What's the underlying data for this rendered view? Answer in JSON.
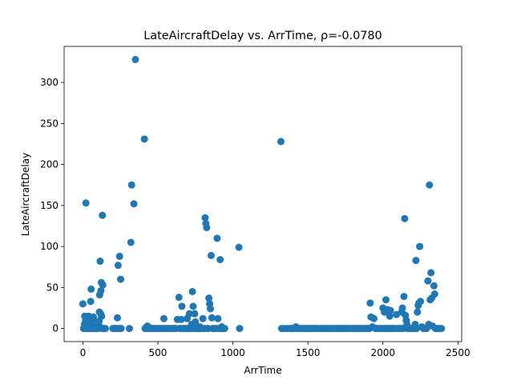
{
  "chart_data": {
    "type": "scatter",
    "title": "LateAircraftDelay vs. ArrTime, ρ=-0.0780",
    "xlabel": "ArrTime",
    "ylabel": "LateAircraftDelay",
    "xlim": [
      -125,
      2525
    ],
    "ylim": [
      -16,
      344
    ],
    "xticks": [
      0,
      500,
      1000,
      1500,
      2000,
      2500
    ],
    "yticks": [
      0,
      50,
      100,
      150,
      200,
      250,
      300
    ],
    "grid": false,
    "legend": "none",
    "marker_color": "#1f77b4",
    "points": [
      [
        0,
        30
      ],
      [
        5,
        0
      ],
      [
        10,
        5
      ],
      [
        12,
        15
      ],
      [
        15,
        0
      ],
      [
        18,
        10
      ],
      [
        20,
        153
      ],
      [
        22,
        0
      ],
      [
        25,
        12
      ],
      [
        28,
        3
      ],
      [
        30,
        0
      ],
      [
        32,
        8
      ],
      [
        35,
        0
      ],
      [
        38,
        15
      ],
      [
        40,
        0
      ],
      [
        42,
        5
      ],
      [
        45,
        2
      ],
      [
        48,
        0
      ],
      [
        50,
        12
      ],
      [
        52,
        33
      ],
      [
        55,
        48
      ],
      [
        58,
        0
      ],
      [
        60,
        5
      ],
      [
        62,
        0
      ],
      [
        65,
        10
      ],
      [
        68,
        0
      ],
      [
        70,
        14
      ],
      [
        72,
        0
      ],
      [
        75,
        0
      ],
      [
        80,
        0
      ],
      [
        85,
        2
      ],
      [
        90,
        0
      ],
      [
        95,
        0
      ],
      [
        100,
        0
      ],
      [
        105,
        5
      ],
      [
        108,
        9
      ],
      [
        110,
        20
      ],
      [
        112,
        41
      ],
      [
        115,
        82
      ],
      [
        118,
        18
      ],
      [
        120,
        46
      ],
      [
        123,
        56
      ],
      [
        125,
        15
      ],
      [
        128,
        0
      ],
      [
        130,
        138
      ],
      [
        133,
        53
      ],
      [
        135,
        0
      ],
      [
        140,
        0
      ],
      [
        150,
        0
      ],
      [
        200,
        0
      ],
      [
        210,
        0
      ],
      [
        220,
        0
      ],
      [
        225,
        0
      ],
      [
        230,
        13
      ],
      [
        235,
        77
      ],
      [
        240,
        0
      ],
      [
        245,
        88
      ],
      [
        250,
        0
      ],
      [
        252,
        60
      ],
      [
        255,
        0
      ],
      [
        310,
        0
      ],
      [
        320,
        105
      ],
      [
        325,
        175
      ],
      [
        340,
        152
      ],
      [
        350,
        328
      ],
      [
        410,
        231
      ],
      [
        415,
        0
      ],
      [
        420,
        0
      ],
      [
        425,
        2
      ],
      [
        430,
        3
      ],
      [
        435,
        0
      ],
      [
        440,
        0
      ],
      [
        445,
        1
      ],
      [
        450,
        0
      ],
      [
        460,
        0
      ],
      [
        470,
        0
      ],
      [
        480,
        0
      ],
      [
        490,
        0
      ],
      [
        500,
        0
      ],
      [
        510,
        0
      ],
      [
        520,
        0
      ],
      [
        530,
        0
      ],
      [
        540,
        12
      ],
      [
        545,
        0
      ],
      [
        550,
        0
      ],
      [
        560,
        0
      ],
      [
        570,
        0
      ],
      [
        580,
        0
      ],
      [
        590,
        0
      ],
      [
        600,
        0
      ],
      [
        610,
        0
      ],
      [
        620,
        0
      ],
      [
        630,
        11
      ],
      [
        640,
        38
      ],
      [
        645,
        0
      ],
      [
        650,
        0
      ],
      [
        655,
        11
      ],
      [
        660,
        27
      ],
      [
        665,
        0
      ],
      [
        670,
        0
      ],
      [
        680,
        0
      ],
      [
        690,
        0
      ],
      [
        695,
        12
      ],
      [
        700,
        0
      ],
      [
        705,
        0
      ],
      [
        710,
        18
      ],
      [
        715,
        0
      ],
      [
        720,
        0
      ],
      [
        725,
        5
      ],
      [
        730,
        45
      ],
      [
        735,
        27
      ],
      [
        740,
        0
      ],
      [
        745,
        18
      ],
      [
        750,
        8
      ],
      [
        755,
        0
      ],
      [
        760,
        0
      ],
      [
        770,
        0
      ],
      [
        775,
        0
      ],
      [
        780,
        2
      ],
      [
        790,
        0
      ],
      [
        800,
        12
      ],
      [
        805,
        0
      ],
      [
        810,
        0
      ],
      [
        815,
        135
      ],
      [
        820,
        128
      ],
      [
        825,
        123
      ],
      [
        830,
        0
      ],
      [
        835,
        0
      ],
      [
        840,
        37
      ],
      [
        845,
        30
      ],
      [
        850,
        24
      ],
      [
        855,
        89
      ],
      [
        860,
        13
      ],
      [
        865,
        0
      ],
      [
        870,
        0
      ],
      [
        880,
        0
      ],
      [
        890,
        0
      ],
      [
        895,
        110
      ],
      [
        900,
        12
      ],
      [
        910,
        0
      ],
      [
        915,
        84
      ],
      [
        920,
        0
      ],
      [
        925,
        2
      ],
      [
        930,
        0
      ],
      [
        940,
        0
      ],
      [
        945,
        0
      ],
      [
        1040,
        99
      ],
      [
        1045,
        0
      ],
      [
        1320,
        228
      ],
      [
        1325,
        0
      ],
      [
        1340,
        0
      ],
      [
        1360,
        0
      ],
      [
        1380,
        0
      ],
      [
        1390,
        0
      ],
      [
        1400,
        0
      ],
      [
        1410,
        0
      ],
      [
        1420,
        2
      ],
      [
        1430,
        0
      ],
      [
        1440,
        0
      ],
      [
        1450,
        0
      ],
      [
        1460,
        0
      ],
      [
        1470,
        0
      ],
      [
        1480,
        0
      ],
      [
        1490,
        0
      ],
      [
        1500,
        0
      ],
      [
        1510,
        0
      ],
      [
        1520,
        0
      ],
      [
        1530,
        0
      ],
      [
        1540,
        0
      ],
      [
        1550,
        0
      ],
      [
        1560,
        0
      ],
      [
        1570,
        0
      ],
      [
        1590,
        0
      ],
      [
        1600,
        0
      ],
      [
        1610,
        0
      ],
      [
        1620,
        0
      ],
      [
        1630,
        0
      ],
      [
        1640,
        0
      ],
      [
        1650,
        0
      ],
      [
        1660,
        0
      ],
      [
        1680,
        0
      ],
      [
        1690,
        0
      ],
      [
        1700,
        0
      ],
      [
        1710,
        0
      ],
      [
        1720,
        0
      ],
      [
        1730,
        0
      ],
      [
        1740,
        0
      ],
      [
        1750,
        0
      ],
      [
        1760,
        0
      ],
      [
        1770,
        0
      ],
      [
        1790,
        0
      ],
      [
        1800,
        0
      ],
      [
        1810,
        0
      ],
      [
        1820,
        0
      ],
      [
        1830,
        0
      ],
      [
        1840,
        0
      ],
      [
        1850,
        0
      ],
      [
        1860,
        0
      ],
      [
        1870,
        0
      ],
      [
        1880,
        0
      ],
      [
        1890,
        0
      ],
      [
        1900,
        0
      ],
      [
        1910,
        0
      ],
      [
        1915,
        31
      ],
      [
        1920,
        14
      ],
      [
        1930,
        2
      ],
      [
        1940,
        12
      ],
      [
        1950,
        0
      ],
      [
        1960,
        0
      ],
      [
        1970,
        0
      ],
      [
        1980,
        0
      ],
      [
        1990,
        0
      ],
      [
        2000,
        25
      ],
      [
        2005,
        0
      ],
      [
        2010,
        20
      ],
      [
        2015,
        0
      ],
      [
        2020,
        35
      ],
      [
        2025,
        0
      ],
      [
        2030,
        23
      ],
      [
        2035,
        0
      ],
      [
        2040,
        0
      ],
      [
        2045,
        15
      ],
      [
        2050,
        22
      ],
      [
        2055,
        0
      ],
      [
        2060,
        0
      ],
      [
        2070,
        0
      ],
      [
        2080,
        0
      ],
      [
        2090,
        17
      ],
      [
        2100,
        0
      ],
      [
        2110,
        0
      ],
      [
        2120,
        0
      ],
      [
        2125,
        20
      ],
      [
        2130,
        25
      ],
      [
        2135,
        0
      ],
      [
        2140,
        39
      ],
      [
        2145,
        134
      ],
      [
        2150,
        16
      ],
      [
        2155,
        10
      ],
      [
        2160,
        5
      ],
      [
        2165,
        0
      ],
      [
        2170,
        0
      ],
      [
        2180,
        0
      ],
      [
        2190,
        0
      ],
      [
        2200,
        0
      ],
      [
        2210,
        0
      ],
      [
        2215,
        5
      ],
      [
        2220,
        83
      ],
      [
        2225,
        0
      ],
      [
        2230,
        20
      ],
      [
        2235,
        28
      ],
      [
        2240,
        31
      ],
      [
        2245,
        100
      ],
      [
        2250,
        33
      ],
      [
        2260,
        2
      ],
      [
        2270,
        0
      ],
      [
        2280,
        0
      ],
      [
        2290,
        0
      ],
      [
        2300,
        58
      ],
      [
        2305,
        5
      ],
      [
        2310,
        175
      ],
      [
        2315,
        35
      ],
      [
        2320,
        68
      ],
      [
        2325,
        37
      ],
      [
        2330,
        3
      ],
      [
        2340,
        52
      ],
      [
        2345,
        42
      ],
      [
        2350,
        0
      ],
      [
        2360,
        0
      ],
      [
        2370,
        0
      ],
      [
        2380,
        0
      ],
      [
        2390,
        0
      ]
    ]
  }
}
